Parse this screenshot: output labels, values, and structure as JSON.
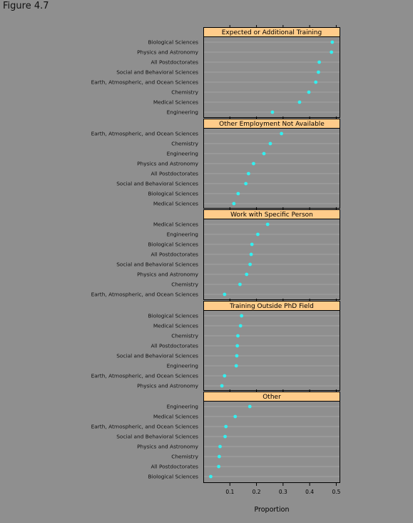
{
  "figure": {
    "title": "Figure 4.7"
  },
  "colors": {
    "background": "#8f8f8f",
    "panel": "#8f8f8f",
    "strip": "#ffcc8a",
    "grid": "#a3a3a3",
    "point": "#33f0f0",
    "frame": "#000000"
  },
  "chart_data": {
    "type": "scatter",
    "subtype": "dot plot (trellis, panels stacked vertically)",
    "xlabel": "Proportion",
    "xlim": [
      0.0,
      0.515
    ],
    "xticks": [
      0.1,
      0.2,
      0.3,
      0.4,
      0.5
    ],
    "xtick_labels": [
      "0.1",
      "0.2",
      "0.3",
      "0.4",
      "0.5"
    ],
    "grid": true,
    "panels": [
      {
        "title": "Expected or Additional Training",
        "rows": [
          {
            "label": "Biological Sciences",
            "value": 0.485
          },
          {
            "label": "Physics and Astronomy",
            "value": 0.482
          },
          {
            "label": "All Postdoctorates",
            "value": 0.436
          },
          {
            "label": "Social and Behavioral Sciences",
            "value": 0.433
          },
          {
            "label": "Earth, Atmospheric, and Ocean Sciences",
            "value": 0.423
          },
          {
            "label": "Chemistry",
            "value": 0.397
          },
          {
            "label": "Medical Sciences",
            "value": 0.362
          },
          {
            "label": "Engineering",
            "value": 0.26
          }
        ]
      },
      {
        "title": "Other Employment Not Available",
        "rows": [
          {
            "label": "Earth, Atmospheric, and Ocean Sciences",
            "value": 0.294
          },
          {
            "label": "Chemistry",
            "value": 0.252
          },
          {
            "label": "Engineering",
            "value": 0.228
          },
          {
            "label": "Physics and Astronomy",
            "value": 0.189
          },
          {
            "label": "All Postdoctorates",
            "value": 0.17
          },
          {
            "label": "Social and Behavioral Sciences",
            "value": 0.16
          },
          {
            "label": "Biological Sciences",
            "value": 0.131
          },
          {
            "label": "Medical Sciences",
            "value": 0.115
          }
        ]
      },
      {
        "title": "Work with Specific Person",
        "rows": [
          {
            "label": "Medical Sciences",
            "value": 0.242
          },
          {
            "label": "Engineering",
            "value": 0.205
          },
          {
            "label": "Biological Sciences",
            "value": 0.183
          },
          {
            "label": "All Postdoctorates",
            "value": 0.18
          },
          {
            "label": "Social and Behavioral Sciences",
            "value": 0.176
          },
          {
            "label": "Physics and Astronomy",
            "value": 0.163
          },
          {
            "label": "Chemistry",
            "value": 0.138
          },
          {
            "label": "Earth, Atmospheric, and Ocean Sciences",
            "value": 0.08
          }
        ]
      },
      {
        "title": "Training Outside PhD Field",
        "rows": [
          {
            "label": "Biological Sciences",
            "value": 0.144
          },
          {
            "label": "Medical Sciences",
            "value": 0.14
          },
          {
            "label": "Chemistry",
            "value": 0.13
          },
          {
            "label": "All Postdoctorates",
            "value": 0.128
          },
          {
            "label": "Social and Behavioral Sciences",
            "value": 0.126
          },
          {
            "label": "Engineering",
            "value": 0.124
          },
          {
            "label": "Earth, Atmospheric, and Ocean Sciences",
            "value": 0.08
          },
          {
            "label": "Physics and Astronomy",
            "value": 0.07
          }
        ]
      },
      {
        "title": "Other",
        "rows": [
          {
            "label": "Engineering",
            "value": 0.175
          },
          {
            "label": "Medical Sciences",
            "value": 0.12
          },
          {
            "label": "Earth, Atmospheric, and Ocean Sciences",
            "value": 0.085
          },
          {
            "label": "Social and Behavioral Sciences",
            "value": 0.082
          },
          {
            "label": "Physics and Astronomy",
            "value": 0.063
          },
          {
            "label": "Chemistry",
            "value": 0.06
          },
          {
            "label": "All Postdoctorates",
            "value": 0.058
          },
          {
            "label": "Biological Sciences",
            "value": 0.028
          }
        ]
      }
    ]
  }
}
